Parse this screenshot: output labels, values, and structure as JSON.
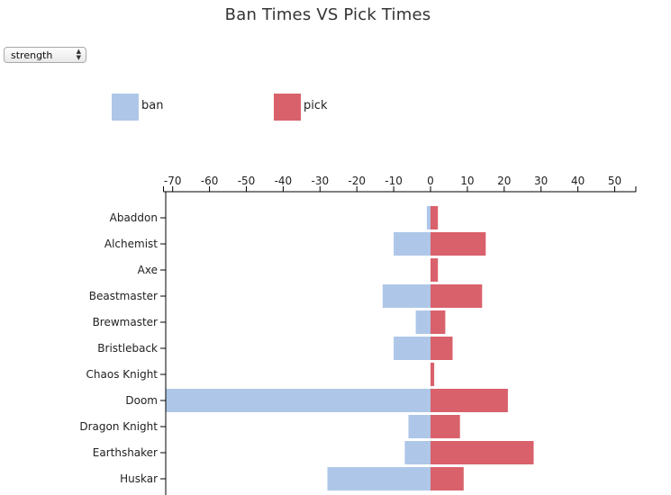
{
  "selector": {
    "value": "strength",
    "arrow_icon": "up-down-chevron-icon"
  },
  "legend": {
    "ban_label": "ban",
    "pick_label": "pick",
    "ban_color": "#aec7e8",
    "pick_color": "#d9616b"
  },
  "chart_data": {
    "type": "bar",
    "orientation": "horizontal-diverging",
    "title": "Ban Times VS Pick Times",
    "xlabel": "",
    "ylabel": "",
    "xlim": [
      -72,
      55
    ],
    "x_ticks": [
      -70,
      -60,
      -50,
      -40,
      -30,
      -20,
      -10,
      0,
      10,
      20,
      30,
      40,
      50
    ],
    "x_axis_position": "top",
    "legend_position": "top-left",
    "grid": false,
    "categories": [
      "Abaddon",
      "Alchemist",
      "Axe",
      "Beastmaster",
      "Brewmaster",
      "Bristleback",
      "Chaos Knight",
      "Doom",
      "Dragon Knight",
      "Earthshaker",
      "Huskar"
    ],
    "series": [
      {
        "name": "ban",
        "color": "#aec7e8",
        "values": [
          -1,
          -10,
          0,
          -13,
          -4,
          -10,
          0,
          -72,
          -6,
          -7,
          -28
        ]
      },
      {
        "name": "pick",
        "color": "#d9616b",
        "values": [
          2,
          15,
          2,
          14,
          4,
          6,
          1,
          21,
          8,
          28,
          9
        ]
      }
    ]
  }
}
